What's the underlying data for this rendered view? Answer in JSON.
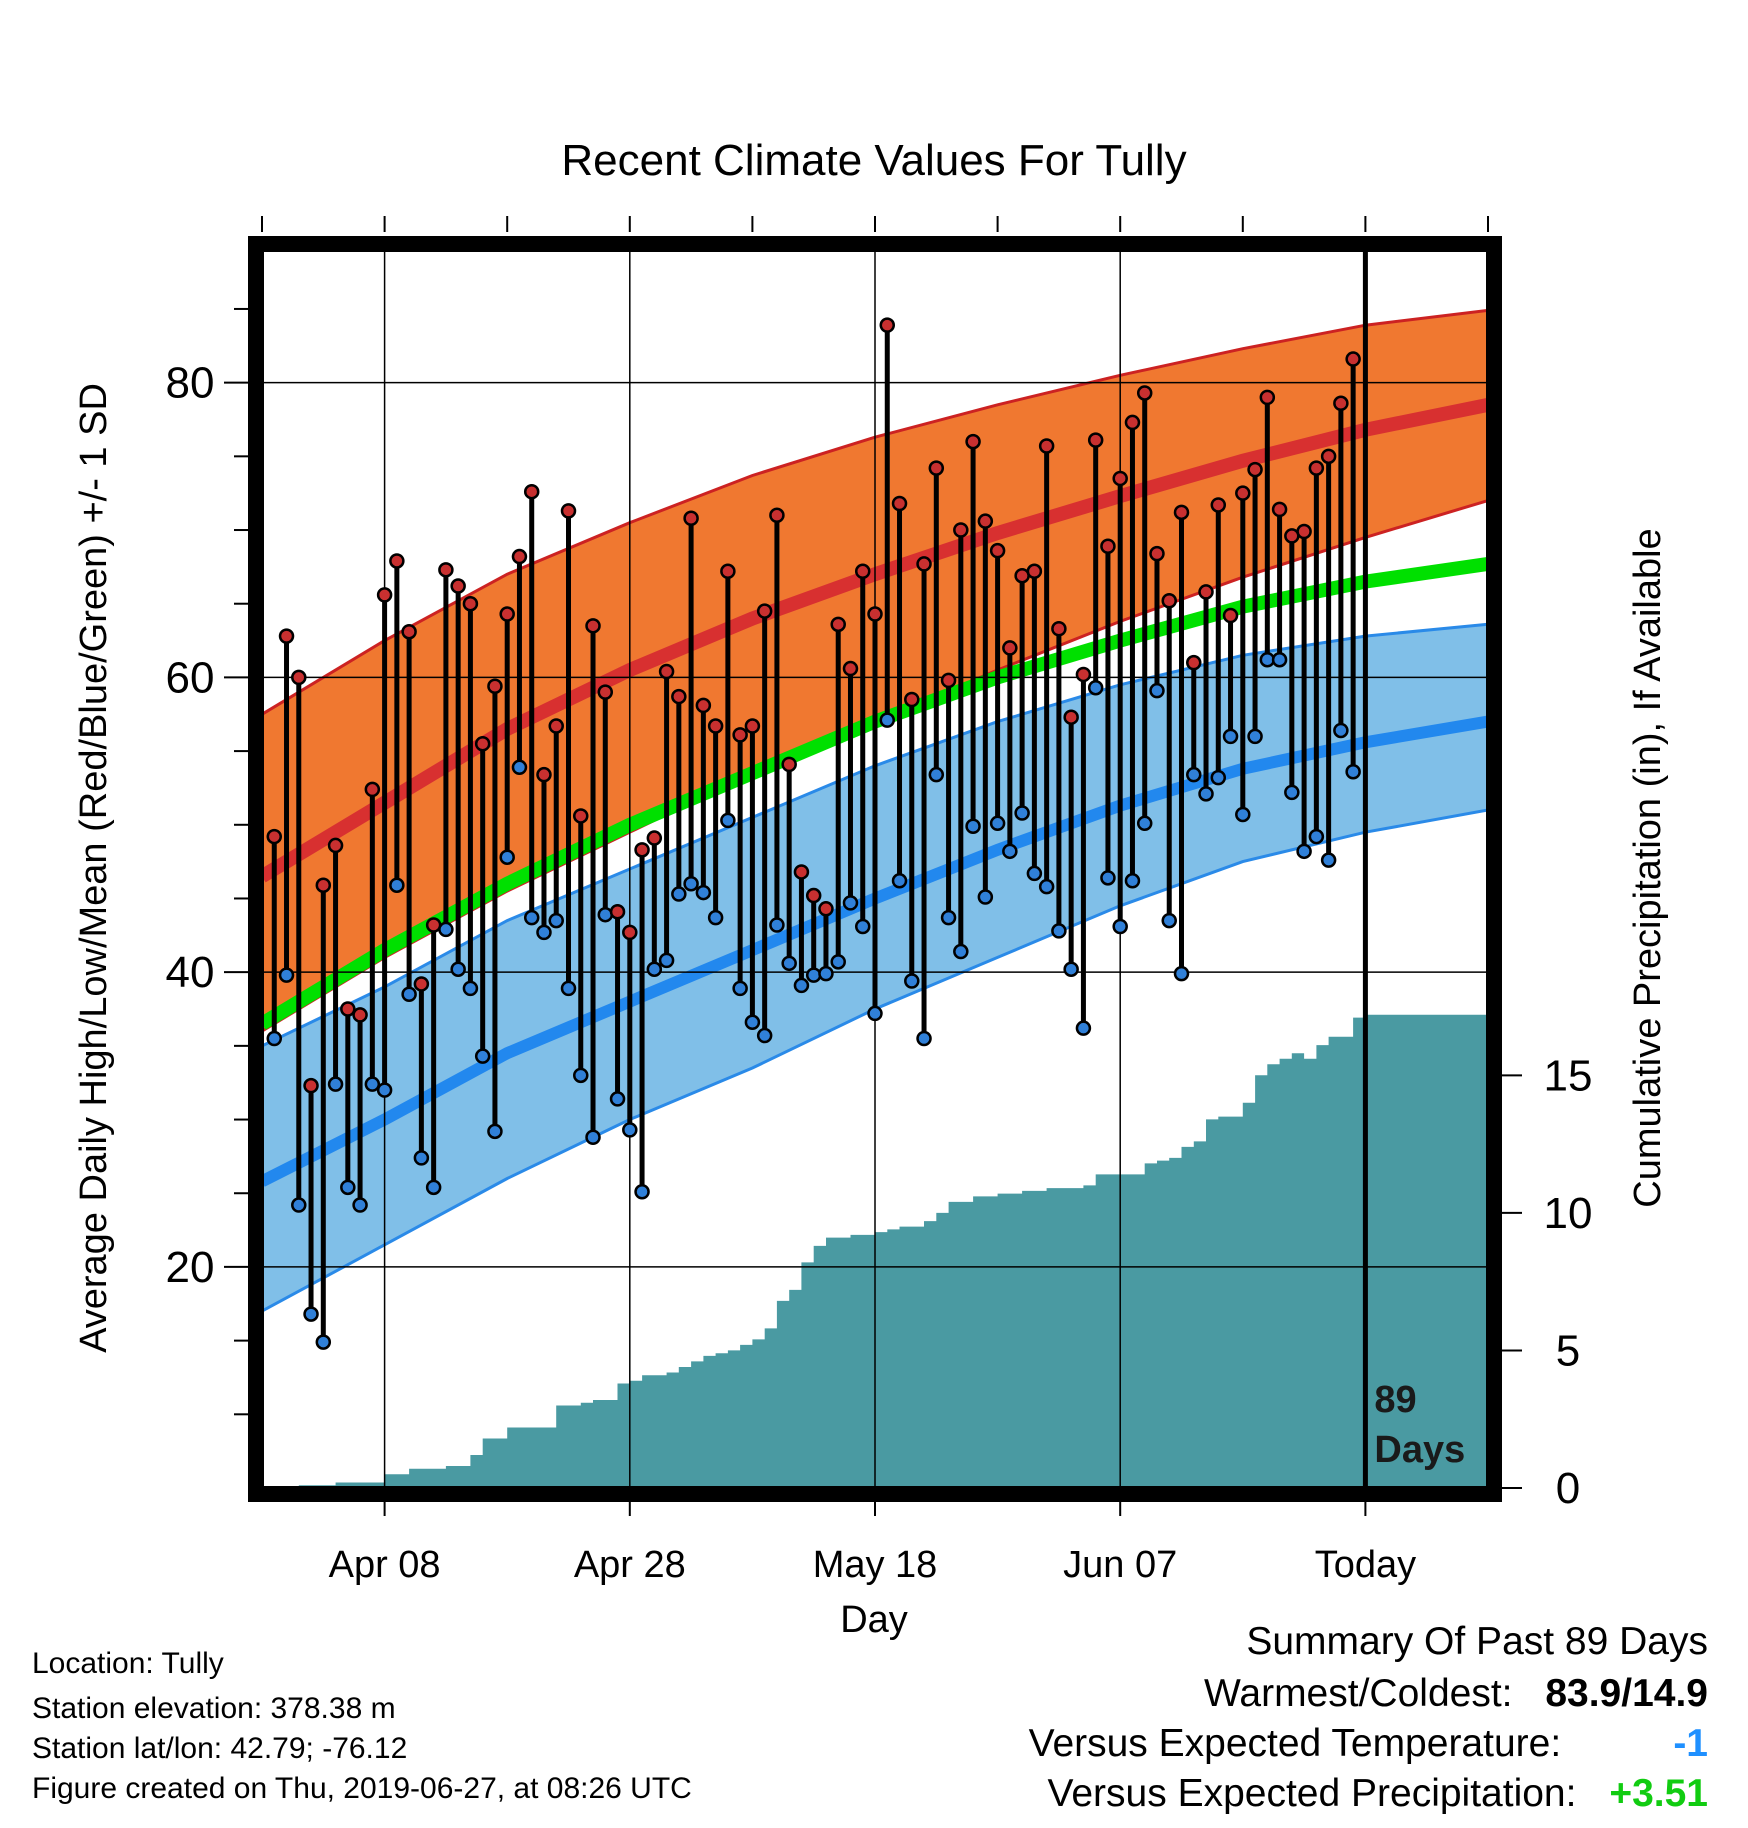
{
  "chart_data": {
    "type": "line",
    "title": "Recent Climate Values For Tully",
    "xlabel": "Day",
    "ylabel": "Average Daily High/Low/Mean (Red/Blue/Green) +/- 1 SD",
    "y2label": "Cumulative Precipitation (in), If Available",
    "ylim": [
      5,
      89
    ],
    "y_ticks": [
      20,
      40,
      60,
      80
    ],
    "y2lim": [
      0,
      45
    ],
    "y2_ticks": [
      0,
      5,
      10,
      15
    ],
    "x_tick_labels": [
      "Apr 08",
      "Apr 28",
      "May 18",
      "Jun 07",
      "Today"
    ],
    "x_tick_days": [
      10,
      30,
      50,
      70,
      90
    ],
    "xlim": [
      0,
      100
    ],
    "grid": true,
    "today_day": 90,
    "today_label": [
      "89",
      "Days"
    ],
    "colors": {
      "high_band": "#f07830",
      "high_line": "#d83030",
      "high_edge": "#cc2222",
      "low_band": "#80bfe8",
      "low_line": "#2288ee",
      "low_edge": "#2a8ae8",
      "mean_line": "#00e000",
      "precip": "#4a9aa2",
      "high_dot": "#c83030",
      "low_dot": "#3080d8"
    },
    "normals": {
      "day": [
        0,
        10,
        20,
        30,
        40,
        50,
        60,
        70,
        80,
        90,
        100
      ],
      "high_mean": [
        46.5,
        51.5,
        56.5,
        60.5,
        64.0,
        67.0,
        69.8,
        72.3,
        74.7,
        76.8,
        78.5
      ],
      "high_upper": [
        57.5,
        62.5,
        67.0,
        70.5,
        73.7,
        76.3,
        78.5,
        80.5,
        82.3,
        83.9,
        84.9
      ],
      "high_lower": [
        36.0,
        41.0,
        45.5,
        49.5,
        53.5,
        57.0,
        60.5,
        63.8,
        66.8,
        69.5,
        72.0
      ],
      "low_mean": [
        25.8,
        30.0,
        34.5,
        38.0,
        41.5,
        45.0,
        48.3,
        51.3,
        53.8,
        55.6,
        57.0
      ],
      "low_upper": [
        35.0,
        39.0,
        43.5,
        47.0,
        50.5,
        54.0,
        57.0,
        59.5,
        61.5,
        62.8,
        63.6
      ],
      "low_lower": [
        17.0,
        21.5,
        26.0,
        30.0,
        33.5,
        37.5,
        41.0,
        44.5,
        47.5,
        49.5,
        51.0
      ],
      "mean": [
        36.5,
        41.5,
        46.0,
        50.0,
        53.5,
        57.0,
        60.0,
        62.5,
        64.8,
        66.5,
        67.7
      ]
    },
    "series": [
      {
        "name": "High",
        "values": [
          49.2,
          62.8,
          60.0,
          32.3,
          45.9,
          48.6,
          37.5,
          37.1,
          52.4,
          65.6,
          67.9,
          63.1,
          39.2,
          43.2,
          67.3,
          66.2,
          65.0,
          55.5,
          59.4,
          64.3,
          68.2,
          72.6,
          53.4,
          56.7,
          71.3,
          50.6,
          63.5,
          59.0,
          44.1,
          42.7,
          48.3,
          49.1,
          60.4,
          58.7,
          70.8,
          58.1,
          56.7,
          67.2,
          56.1,
          56.7,
          64.5,
          71.0,
          54.1,
          46.8,
          45.2,
          44.3,
          63.6,
          60.6,
          67.2,
          64.3,
          83.9,
          71.8,
          58.5,
          67.7,
          74.2,
          59.8,
          70.0,
          76.0,
          70.6,
          68.6,
          62.0,
          66.9,
          67.2,
          75.7,
          63.3,
          57.3,
          60.2,
          76.1,
          68.9,
          73.5,
          77.3,
          79.3,
          68.4,
          65.2,
          71.2,
          61.0,
          65.8,
          71.7,
          64.2,
          72.5,
          74.1,
          79.0,
          71.4,
          69.6,
          69.9,
          74.2,
          75.0,
          78.6,
          81.6
        ],
        "low": [
          35.5,
          39.8,
          24.2,
          16.8,
          14.9,
          32.4,
          25.4,
          24.2,
          32.4,
          32.0,
          45.9,
          38.5,
          27.4,
          25.4,
          42.9,
          40.2,
          38.9,
          34.3,
          29.2,
          47.8,
          53.9,
          43.7,
          42.7,
          43.5,
          38.9,
          33.0,
          28.8,
          43.9,
          31.4,
          29.3,
          25.1,
          40.2,
          40.8,
          45.3,
          46.0,
          45.4,
          43.7,
          50.3,
          38.9,
          36.6,
          35.7,
          43.2,
          40.6,
          39.1,
          39.8,
          39.9,
          40.7,
          44.7,
          43.1,
          37.2,
          57.1,
          46.2,
          39.4,
          35.5,
          53.4,
          43.7,
          41.4,
          49.9,
          45.1,
          50.1,
          48.2,
          50.8,
          46.7,
          45.8,
          42.8,
          40.2,
          36.2,
          59.3,
          46.4,
          43.1,
          46.2,
          50.1,
          59.1,
          43.5,
          39.9,
          53.4,
          52.1,
          53.2,
          56.0,
          50.7,
          56.0,
          61.2,
          61.2,
          52.2,
          48.2,
          49.2,
          47.6,
          56.4,
          53.6
        ]
      }
    ],
    "precip": {
      "day": [
        3,
        6,
        7,
        10,
        12,
        15,
        16,
        17,
        18,
        20,
        21,
        24,
        26,
        27,
        29,
        30,
        31,
        33,
        34,
        35,
        36,
        37,
        38,
        39,
        40,
        41,
        42,
        43,
        44,
        45,
        46,
        47,
        48,
        49,
        50,
        51,
        52,
        54,
        55,
        56,
        57,
        58,
        59,
        60,
        62,
        63,
        64,
        65,
        66,
        67,
        68,
        69,
        70,
        72,
        73,
        74,
        75,
        76,
        77,
        78,
        80,
        81,
        82,
        83,
        84,
        85,
        86,
        87,
        89,
        90,
        100
      ],
      "value": [
        0.1,
        0.2,
        0.2,
        0.5,
        0.7,
        0.8,
        0.8,
        1.2,
        1.8,
        2.2,
        2.2,
        3.0,
        3.1,
        3.2,
        3.8,
        3.9,
        4.1,
        4.2,
        4.4,
        4.6,
        4.8,
        4.9,
        5.0,
        5.2,
        5.4,
        5.8,
        6.8,
        7.2,
        8.2,
        8.8,
        9.1,
        9.1,
        9.2,
        9.2,
        9.3,
        9.4,
        9.5,
        9.7,
        10.0,
        10.4,
        10.4,
        10.6,
        10.6,
        10.7,
        10.8,
        10.8,
        10.9,
        10.9,
        10.9,
        11.0,
        11.4,
        11.4,
        11.4,
        11.8,
        11.9,
        12.0,
        12.4,
        12.6,
        13.4,
        13.5,
        14.0,
        15.0,
        15.4,
        15.6,
        15.8,
        15.6,
        16.1,
        16.4,
        17.1,
        17.2,
        17.2
      ]
    }
  },
  "info": {
    "location": "Location: Tully",
    "elevation": "Station elevation: 378.38 m",
    "latlon": "Station lat/lon: 42.79; -76.12",
    "created": "Figure created on Thu, 2019-06-27, at 08:26 UTC"
  },
  "summary": {
    "title": "Summary Of Past 89 Days",
    "warm_cold_label": "Warmest/Coldest:",
    "warm_cold_value": "83.9/14.9",
    "temp_label": "Versus Expected Temperature:",
    "temp_value": "-1",
    "temp_color": "#1f90ff",
    "precip_label": "Versus Expected Precipitation:",
    "precip_value": "+3.51",
    "precip_color": "#11cc11"
  }
}
